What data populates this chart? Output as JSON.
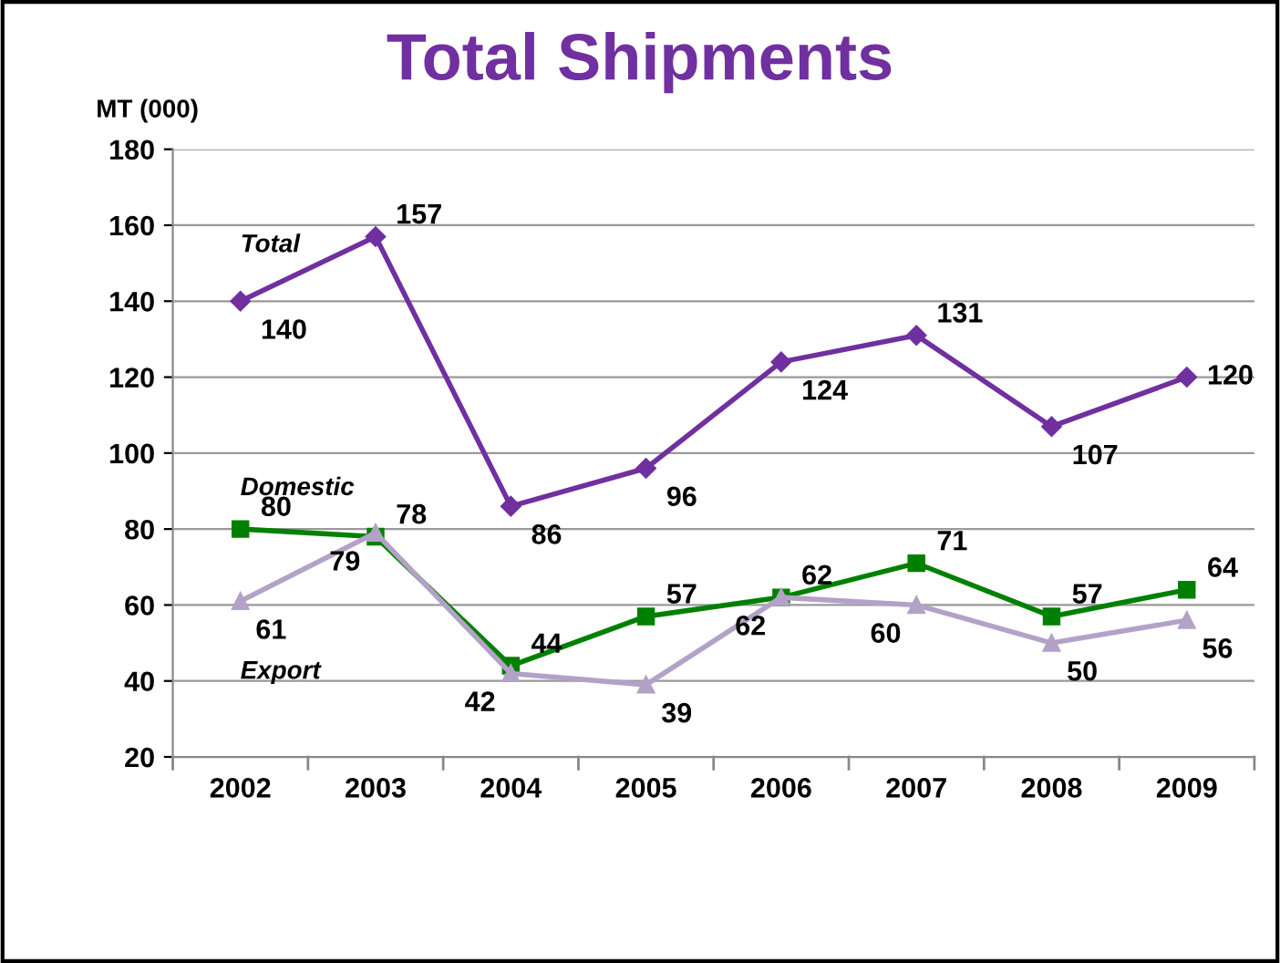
{
  "chart_data": {
    "type": "line",
    "title": "Total Shipments",
    "ylabel": "MT (000)",
    "categories": [
      "2002",
      "2003",
      "2004",
      "2005",
      "2006",
      "2007",
      "2008",
      "2009"
    ],
    "series": [
      {
        "name": "Total",
        "color": "#7030a0",
        "marker": "diamond",
        "values": [
          140,
          157,
          86,
          96,
          124,
          131,
          107,
          120
        ]
      },
      {
        "name": "Domestic",
        "color": "#008000",
        "marker": "square",
        "values": [
          80,
          78,
          44,
          57,
          62,
          71,
          57,
          64
        ]
      },
      {
        "name": "Export",
        "color": "#b3a2c7",
        "marker": "triangle",
        "values": [
          61,
          79,
          42,
          39,
          62,
          60,
          50,
          56
        ]
      }
    ],
    "ylim": [
      20,
      180
    ],
    "yticks": [
      20,
      40,
      60,
      80,
      100,
      120,
      140,
      160,
      180
    ],
    "grid": "y",
    "legend": false,
    "data_labels": true,
    "line_style": "solid"
  }
}
